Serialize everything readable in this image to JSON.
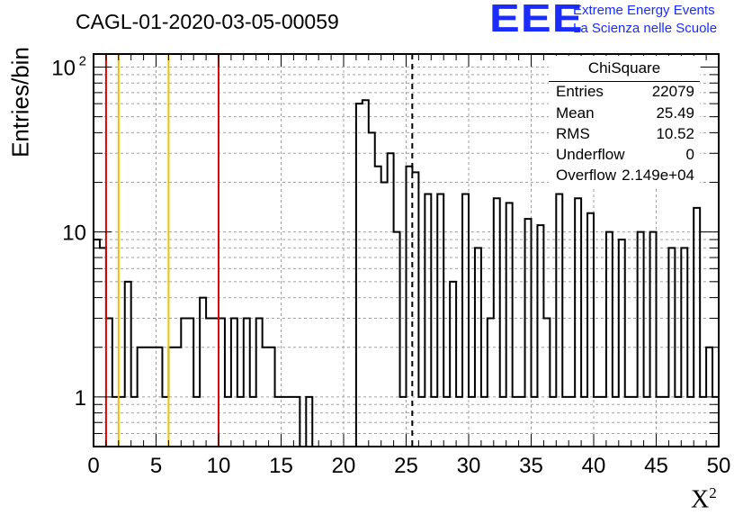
{
  "title": "CAGL-01-2020-03-05-00059",
  "logo": {
    "mark": "EEE",
    "line1": "Extreme Energy Events",
    "line2": "La Scienza nelle Scuole",
    "color": "#1a2cff"
  },
  "stats": {
    "name": "ChiSquare",
    "rows": [
      {
        "key": "Entries",
        "value": "22079"
      },
      {
        "key": "Mean",
        "value": "25.49"
      },
      {
        "key": "RMS",
        "value": "10.52"
      },
      {
        "key": "Underflow",
        "value": "0"
      },
      {
        "key": "Overflow",
        "value": "2.149e+04"
      }
    ]
  },
  "chart_data": {
    "type": "histogram",
    "title": "CAGL-01-2020-03-05-00059",
    "xlabel": "X",
    "xlabel_sup": "2",
    "ylabel": "Entries/bin",
    "xlim": [
      0,
      50
    ],
    "ylim": [
      0.5,
      120
    ],
    "yscale": "log",
    "grid": true,
    "bin_width": 0.5,
    "x_ticks": [
      "0",
      "5",
      "10",
      "15",
      "20",
      "25",
      "30",
      "35",
      "40",
      "45",
      "50"
    ],
    "y_ticks": [
      {
        "value": 1,
        "label": "1"
      },
      {
        "value": 10,
        "label": "10"
      },
      {
        "value": 100,
        "label": "10",
        "sup": "2"
      }
    ],
    "values": [
      9,
      8,
      3,
      1,
      1,
      5,
      1,
      2,
      2,
      2,
      2,
      1,
      2,
      2,
      3,
      3,
      1,
      4,
      3,
      3,
      3,
      1,
      3,
      1,
      3,
      1,
      3,
      2,
      2,
      1,
      1,
      1,
      1,
      0,
      1,
      0,
      0,
      0,
      0,
      0,
      0,
      0,
      60,
      63,
      40,
      25,
      20,
      30,
      10,
      1,
      25,
      23,
      1,
      17,
      1,
      17,
      1,
      5,
      1,
      17,
      1,
      8,
      1,
      3,
      16,
      1,
      15,
      1,
      1,
      12,
      1,
      11,
      3,
      1,
      17,
      1,
      1,
      16,
      1,
      13,
      1,
      1,
      10,
      1,
      9,
      1,
      1,
      10,
      1,
      10,
      1,
      1,
      8,
      1,
      8,
      1,
      14,
      1,
      2,
      1
    ],
    "vlines": [
      {
        "x": 1,
        "color": "#e00000",
        "style": "solid"
      },
      {
        "x": 2,
        "color": "#f0c000",
        "style": "solid"
      },
      {
        "x": 6,
        "color": "#f0c000",
        "style": "solid"
      },
      {
        "x": 10,
        "color": "#e00000",
        "style": "solid"
      },
      {
        "x": 25.49,
        "color": "#000000",
        "style": "dashed"
      }
    ]
  }
}
